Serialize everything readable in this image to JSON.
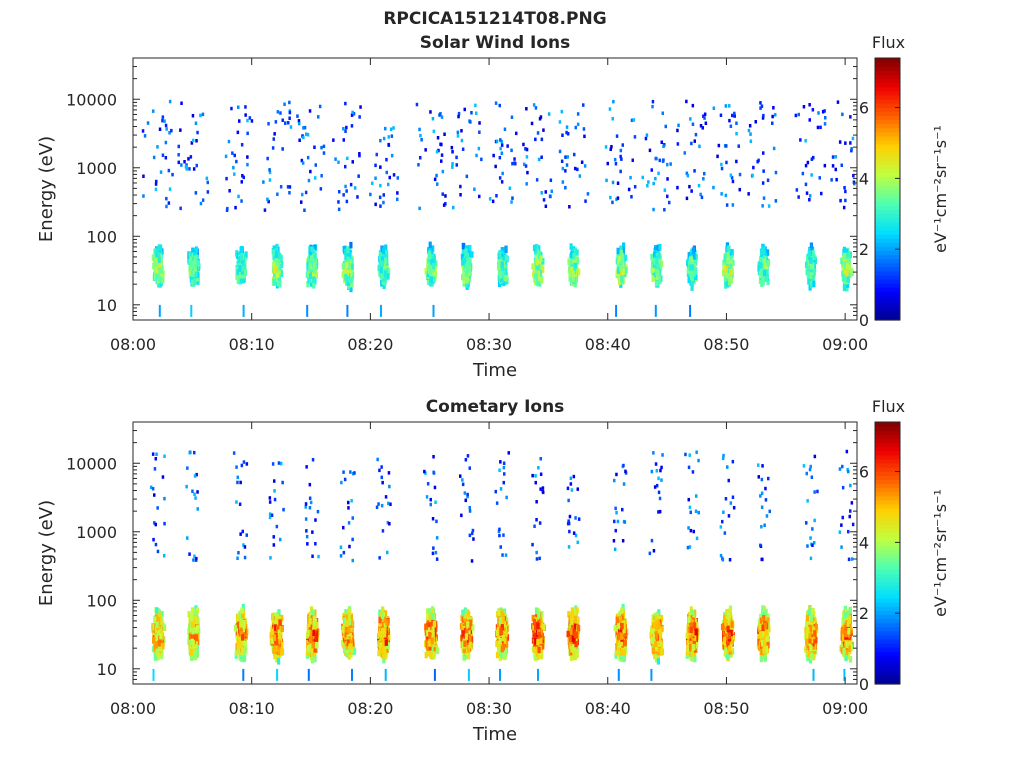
{
  "figure": {
    "title": "RPCICA151214T08.PNG"
  },
  "colors": {
    "axis": "#262626",
    "background": "#ffffff",
    "colormap": [
      "#00008f",
      "#0000ff",
      "#0070ff",
      "#00dfff",
      "#50ffaf",
      "#bfff40",
      "#ffcf00",
      "#ff6000",
      "#ef0000",
      "#800000"
    ]
  },
  "chart_data": [
    {
      "type": "heatmap",
      "title": "Solar Wind Ions",
      "xlabel": "Time",
      "ylabel": "Energy (eV)",
      "x_range": [
        "08:00",
        "09:01"
      ],
      "x_ticks": [
        "08:00",
        "08:10",
        "08:20",
        "08:30",
        "08:40",
        "08:50",
        "09:00"
      ],
      "y_scale": "log",
      "y_range": [
        6,
        40000
      ],
      "y_ticks": [
        "10",
        "100",
        "1000",
        "10000"
      ],
      "colorbar": {
        "title": "Flux",
        "label": "eV⁻¹cm⁻²sr⁻¹s⁻¹",
        "range": [
          0,
          7.4
        ],
        "ticks": [
          "0",
          "2",
          "4",
          "6"
        ]
      },
      "grid": false,
      "bursts": [
        {
          "t": "08:02",
          "peak": 4.6
        },
        {
          "t": "08:05",
          "peak": 4.2
        },
        {
          "t": "08:09",
          "peak": 4.2
        },
        {
          "t": "08:12",
          "peak": 4.8
        },
        {
          "t": "08:15",
          "peak": 4.4
        },
        {
          "t": "08:18",
          "peak": 4.6
        },
        {
          "t": "08:21",
          "peak": 4.2
        },
        {
          "t": "08:25",
          "peak": 4.4
        },
        {
          "t": "08:28",
          "peak": 4.6
        },
        {
          "t": "08:31",
          "peak": 4.2
        },
        {
          "t": "08:34",
          "peak": 4.8
        },
        {
          "t": "08:37",
          "peak": 4.6
        },
        {
          "t": "08:41",
          "peak": 4.8
        },
        {
          "t": "08:44",
          "peak": 4.4
        },
        {
          "t": "08:47",
          "peak": 4.2
        },
        {
          "t": "08:50",
          "peak": 4.8
        },
        {
          "t": "08:53",
          "peak": 4.2
        },
        {
          "t": "08:57",
          "peak": 4.2
        },
        {
          "t": "09:00",
          "peak": 4.6
        }
      ]
    },
    {
      "type": "heatmap",
      "title": "Cometary Ions",
      "xlabel": "Time",
      "ylabel": "Energy (eV)",
      "x_range": [
        "08:00",
        "09:01"
      ],
      "x_ticks": [
        "08:00",
        "08:10",
        "08:20",
        "08:30",
        "08:40",
        "08:50",
        "09:00"
      ],
      "y_scale": "log",
      "y_range": [
        6,
        40000
      ],
      "y_ticks": [
        "10",
        "100",
        "1000",
        "10000"
      ],
      "colorbar": {
        "title": "Flux",
        "label": "eV⁻¹cm⁻²sr⁻¹s⁻¹",
        "range": [
          0,
          7.4
        ],
        "ticks": [
          "0",
          "2",
          "4",
          "6"
        ]
      },
      "grid": false,
      "bursts": [
        {
          "t": "08:02",
          "peak": 6.2
        },
        {
          "t": "08:05",
          "peak": 6.0
        },
        {
          "t": "08:09",
          "peak": 6.4
        },
        {
          "t": "08:12",
          "peak": 6.6
        },
        {
          "t": "08:15",
          "peak": 6.8
        },
        {
          "t": "08:18",
          "peak": 6.4
        },
        {
          "t": "08:21",
          "peak": 6.8
        },
        {
          "t": "08:25",
          "peak": 6.6
        },
        {
          "t": "08:28",
          "peak": 6.6
        },
        {
          "t": "08:31",
          "peak": 6.6
        },
        {
          "t": "08:34",
          "peak": 7.0
        },
        {
          "t": "08:37",
          "peak": 6.8
        },
        {
          "t": "08:41",
          "peak": 6.6
        },
        {
          "t": "08:44",
          "peak": 6.4
        },
        {
          "t": "08:47",
          "peak": 6.8
        },
        {
          "t": "08:50",
          "peak": 6.8
        },
        {
          "t": "08:53",
          "peak": 6.6
        },
        {
          "t": "08:57",
          "peak": 6.6
        },
        {
          "t": "09:00",
          "peak": 6.6
        }
      ]
    }
  ]
}
